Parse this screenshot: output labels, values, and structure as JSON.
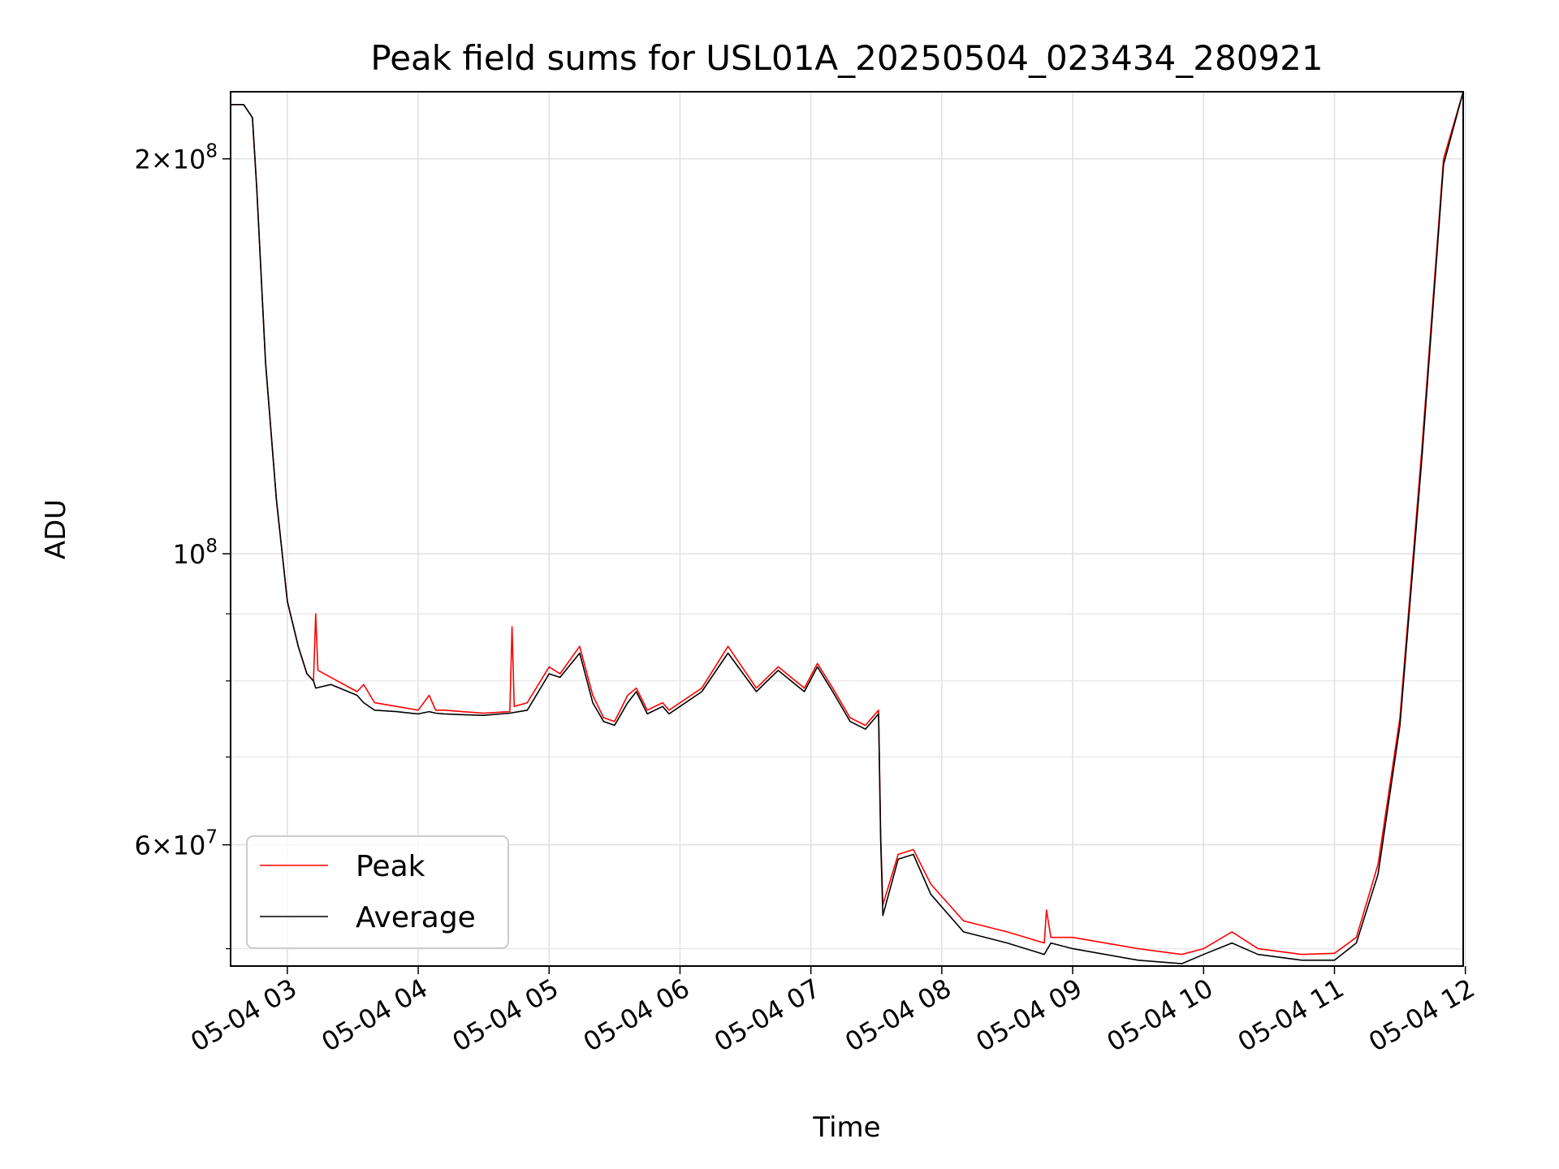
{
  "chart_data": {
    "type": "line",
    "title": "Peak field sums for USL01A_20250504_023434_280921",
    "xlabel": "Time",
    "ylabel": "ADU",
    "xlim": [
      "2025-05-04 02:34",
      "2025-05-04 11:59"
    ],
    "ylim": [
      48500000,
      225000000
    ],
    "yscale": "log",
    "grid": true,
    "legend_position": "lower-left",
    "x_ticks": [
      {
        "value": "2025-05-04 03:00",
        "label": "05-04 03"
      },
      {
        "value": "2025-05-04 04:00",
        "label": "05-04 04"
      },
      {
        "value": "2025-05-04 05:00",
        "label": "05-04 05"
      },
      {
        "value": "2025-05-04 06:00",
        "label": "05-04 06"
      },
      {
        "value": "2025-05-04 07:00",
        "label": "05-04 07"
      },
      {
        "value": "2025-05-04 08:00",
        "label": "05-04 08"
      },
      {
        "value": "2025-05-04 09:00",
        "label": "05-04 09"
      },
      {
        "value": "2025-05-04 10:00",
        "label": "05-04 10"
      },
      {
        "value": "2025-05-04 11:00",
        "label": "05-04 11"
      },
      {
        "value": "2025-05-04 12:00",
        "label": "05-04 12"
      }
    ],
    "y_major_ticks": [
      {
        "value": 60000000,
        "mantissa": "6",
        "times": "×",
        "base": "10",
        "exp": "7"
      },
      {
        "value": 100000000,
        "mantissa": "",
        "times": "",
        "base": "10",
        "exp": "8"
      },
      {
        "value": 200000000,
        "mantissa": "2",
        "times": "×",
        "base": "10",
        "exp": "8"
      }
    ],
    "y_minor_ticks": [
      50000000,
      70000000,
      80000000,
      90000000
    ],
    "series": [
      {
        "name": "Peak",
        "color": "#ff0000",
        "x": [
          "2025-05-04 02:34",
          "2025-05-04 02:40",
          "2025-05-04 02:44",
          "2025-05-04 02:46",
          "2025-05-04 02:50",
          "2025-05-04 02:55",
          "2025-05-04 03:00",
          "2025-05-04 03:05",
          "2025-05-04 03:09",
          "2025-05-04 03:12",
          "2025-05-04 03:13",
          "2025-05-04 03:14",
          "2025-05-04 03:20",
          "2025-05-04 03:32",
          "2025-05-04 03:35",
          "2025-05-04 03:40",
          "2025-05-04 03:50",
          "2025-05-04 04:00",
          "2025-05-04 04:05",
          "2025-05-04 04:08",
          "2025-05-04 04:12",
          "2025-05-04 04:20",
          "2025-05-04 04:30",
          "2025-05-04 04:42",
          "2025-05-04 04:43",
          "2025-05-04 04:44",
          "2025-05-04 04:50",
          "2025-05-04 05:00",
          "2025-05-04 05:05",
          "2025-05-04 05:14",
          "2025-05-04 05:20",
          "2025-05-04 05:25",
          "2025-05-04 05:30",
          "2025-05-04 05:36",
          "2025-05-04 05:40",
          "2025-05-04 05:45",
          "2025-05-04 05:52",
          "2025-05-04 05:55",
          "2025-05-04 06:00",
          "2025-05-04 06:10",
          "2025-05-04 06:22",
          "2025-05-04 06:35",
          "2025-05-04 06:45",
          "2025-05-04 06:57",
          "2025-05-04 07:03",
          "2025-05-04 07:10",
          "2025-05-04 07:18",
          "2025-05-04 07:25",
          "2025-05-04 07:31",
          "2025-05-04 07:32",
          "2025-05-04 07:33",
          "2025-05-04 07:40",
          "2025-05-04 07:47",
          "2025-05-04 07:55",
          "2025-05-04 08:10",
          "2025-05-04 08:30",
          "2025-05-04 08:47",
          "2025-05-04 08:48",
          "2025-05-04 08:50",
          "2025-05-04 09:00",
          "2025-05-04 09:30",
          "2025-05-04 09:50",
          "2025-05-04 10:00",
          "2025-05-04 10:13",
          "2025-05-04 10:25",
          "2025-05-04 10:45",
          "2025-05-04 11:00",
          "2025-05-04 11:10",
          "2025-05-04 11:20",
          "2025-05-04 11:30",
          "2025-05-04 11:40",
          "2025-05-04 11:50",
          "2025-05-04 11:59"
        ],
        "y": [
          220000000,
          220000000,
          215000000,
          190000000,
          140000000,
          110000000,
          92000000,
          85000000,
          81000000,
          80000000,
          90000000,
          81500000,
          80500000,
          78500000,
          79500000,
          77000000,
          76500000,
          76000000,
          78000000,
          76000000,
          76000000,
          75800000,
          75600000,
          75800000,
          88000000,
          76500000,
          77000000,
          82000000,
          81000000,
          85000000,
          78000000,
          75000000,
          74500000,
          78000000,
          79000000,
          76000000,
          77000000,
          76000000,
          77000000,
          79000000,
          85000000,
          79000000,
          82000000,
          79000000,
          82500000,
          79000000,
          75000000,
          74000000,
          76000000,
          61000000,
          54000000,
          59000000,
          59500000,
          56000000,
          52500000,
          51500000,
          50500000,
          53500000,
          51000000,
          51000000,
          50000000,
          49500000,
          50000000,
          51500000,
          50000000,
          49500000,
          49600000,
          51000000,
          58000000,
          75000000,
          120000000,
          200000000,
          225000000
        ]
      },
      {
        "name": "Average",
        "color": "#000000",
        "x": [
          "2025-05-04 02:34",
          "2025-05-04 02:40",
          "2025-05-04 02:44",
          "2025-05-04 02:46",
          "2025-05-04 02:50",
          "2025-05-04 02:55",
          "2025-05-04 03:00",
          "2025-05-04 03:05",
          "2025-05-04 03:09",
          "2025-05-04 03:12",
          "2025-05-04 03:13",
          "2025-05-04 03:20",
          "2025-05-04 03:32",
          "2025-05-04 03:35",
          "2025-05-04 03:40",
          "2025-05-04 03:50",
          "2025-05-04 04:00",
          "2025-05-04 04:05",
          "2025-05-04 04:08",
          "2025-05-04 04:12",
          "2025-05-04 04:20",
          "2025-05-04 04:30",
          "2025-05-04 04:42",
          "2025-05-04 04:50",
          "2025-05-04 05:00",
          "2025-05-04 05:05",
          "2025-05-04 05:14",
          "2025-05-04 05:20",
          "2025-05-04 05:25",
          "2025-05-04 05:30",
          "2025-05-04 05:36",
          "2025-05-04 05:40",
          "2025-05-04 05:45",
          "2025-05-04 05:52",
          "2025-05-04 05:55",
          "2025-05-04 06:00",
          "2025-05-04 06:10",
          "2025-05-04 06:22",
          "2025-05-04 06:35",
          "2025-05-04 06:45",
          "2025-05-04 06:57",
          "2025-05-04 07:03",
          "2025-05-04 07:10",
          "2025-05-04 07:18",
          "2025-05-04 07:25",
          "2025-05-04 07:31",
          "2025-05-04 07:32",
          "2025-05-04 07:33",
          "2025-05-04 07:40",
          "2025-05-04 07:47",
          "2025-05-04 07:55",
          "2025-05-04 08:10",
          "2025-05-04 08:30",
          "2025-05-04 08:47",
          "2025-05-04 08:50",
          "2025-05-04 09:00",
          "2025-05-04 09:30",
          "2025-05-04 09:50",
          "2025-05-04 10:00",
          "2025-05-04 10:13",
          "2025-05-04 10:25",
          "2025-05-04 10:45",
          "2025-05-04 11:00",
          "2025-05-04 11:10",
          "2025-05-04 11:20",
          "2025-05-04 11:30",
          "2025-05-04 11:40",
          "2025-05-04 11:50",
          "2025-05-04 11:59"
        ],
        "y": [
          220000000,
          220000000,
          215000000,
          190000000,
          140000000,
          110000000,
          92000000,
          85000000,
          81000000,
          80000000,
          79000000,
          79500000,
          78000000,
          77000000,
          76000000,
          75800000,
          75500000,
          75800000,
          75600000,
          75500000,
          75400000,
          75300000,
          75600000,
          76000000,
          81000000,
          80500000,
          84000000,
          77000000,
          74500000,
          74000000,
          77000000,
          78500000,
          75500000,
          76500000,
          75500000,
          76500000,
          78500000,
          84000000,
          78500000,
          81500000,
          78500000,
          82000000,
          78500000,
          74500000,
          73500000,
          75500000,
          60500000,
          53000000,
          58500000,
          59000000,
          55000000,
          51500000,
          50500000,
          49500000,
          50500000,
          50000000,
          49000000,
          48700000,
          49500000,
          50500000,
          49500000,
          49000000,
          49000000,
          50500000,
          57000000,
          74000000,
          118000000,
          198000000,
          225000000
        ]
      }
    ]
  }
}
